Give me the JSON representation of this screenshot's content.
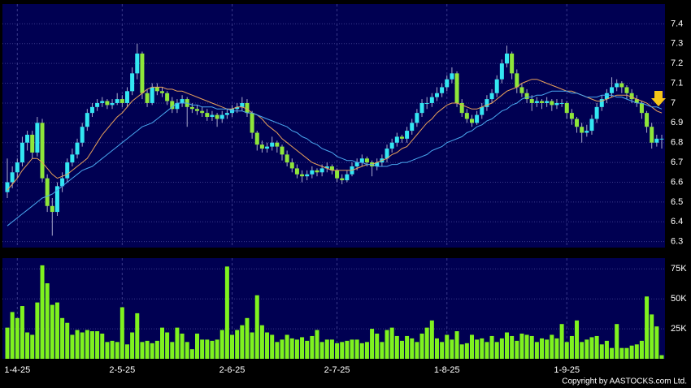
{
  "chart_data": {
    "type": "candlestick",
    "categories": [
      null,
      null,
      "1-4-25",
      null,
      null,
      null,
      null,
      null,
      null,
      null,
      null,
      null,
      null,
      null,
      null,
      null,
      null,
      null,
      null,
      null,
      null,
      null,
      null,
      "2-5-25",
      null,
      null,
      null,
      null,
      null,
      null,
      null,
      null,
      null,
      null,
      null,
      null,
      null,
      null,
      null,
      null,
      null,
      null,
      null,
      null,
      null,
      "2-6-25",
      null,
      null,
      null,
      null,
      null,
      null,
      null,
      null,
      null,
      null,
      null,
      null,
      null,
      null,
      null,
      null,
      null,
      null,
      null,
      null,
      "2-7-25",
      null,
      null,
      null,
      null,
      null,
      null,
      null,
      null,
      null,
      null,
      null,
      null,
      null,
      null,
      null,
      null,
      null,
      null,
      null,
      null,
      null,
      "1-8-25",
      null,
      null,
      null,
      null,
      null,
      null,
      null,
      null,
      null,
      null,
      null,
      null,
      null,
      null,
      null,
      null,
      null,
      null,
      null,
      null,
      null,
      null,
      null,
      "1-9-25",
      null,
      null,
      null,
      null,
      null,
      null,
      null,
      null,
      null,
      null,
      null,
      null,
      null,
      null,
      null,
      null,
      null,
      null,
      null
    ],
    "ohlc": [
      [
        6.55,
        6.72,
        6.52,
        6.6
      ],
      [
        6.6,
        6.68,
        6.57,
        6.65
      ],
      [
        6.65,
        6.72,
        6.62,
        6.7
      ],
      [
        6.7,
        6.83,
        6.68,
        6.8
      ],
      [
        6.8,
        6.86,
        6.76,
        6.84
      ],
      [
        6.84,
        6.86,
        6.72,
        6.75
      ],
      [
        6.75,
        6.93,
        6.73,
        6.9
      ],
      [
        6.9,
        6.92,
        6.6,
        6.62
      ],
      [
        6.62,
        6.64,
        6.45,
        6.48
      ],
      [
        6.48,
        6.52,
        6.33,
        6.45
      ],
      [
        6.45,
        6.6,
        6.43,
        6.58
      ],
      [
        6.58,
        6.65,
        6.55,
        6.62
      ],
      [
        6.62,
        6.72,
        6.6,
        6.7
      ],
      [
        6.7,
        6.77,
        6.68,
        6.74
      ],
      [
        6.74,
        6.82,
        6.72,
        6.8
      ],
      [
        6.8,
        6.9,
        6.78,
        6.88
      ],
      [
        6.88,
        6.97,
        6.86,
        6.95
      ],
      [
        6.95,
        7.0,
        6.93,
        6.98
      ],
      [
        6.98,
        7.02,
        6.96,
        7.0
      ],
      [
        7.0,
        7.03,
        6.98,
        7.01
      ],
      [
        7.01,
        7.02,
        6.97,
        6.99
      ],
      [
        6.99,
        7.02,
        6.97,
        7.0
      ],
      [
        7.0,
        7.05,
        6.99,
        7.02
      ],
      [
        7.02,
        7.04,
        6.98,
        7.0
      ],
      [
        7.0,
        7.08,
        6.98,
        7.06
      ],
      [
        7.06,
        7.18,
        7.04,
        7.15
      ],
      [
        7.15,
        7.3,
        7.12,
        7.25
      ],
      [
        7.25,
        7.26,
        7.02,
        7.05
      ],
      [
        7.05,
        7.07,
        6.98,
        7.0
      ],
      [
        7.0,
        7.1,
        6.99,
        7.08
      ],
      [
        7.08,
        7.1,
        7.04,
        7.06
      ],
      [
        7.06,
        7.08,
        7.03,
        7.05
      ],
      [
        7.05,
        7.06,
        6.99,
        7.01
      ],
      [
        7.01,
        7.03,
        6.95,
        6.97
      ],
      [
        6.97,
        7.02,
        6.95,
        7.0
      ],
      [
        7.0,
        7.04,
        6.98,
        7.02
      ],
      [
        7.02,
        7.03,
        6.88,
        6.98
      ],
      [
        6.98,
        7.0,
        6.95,
        6.97
      ],
      [
        6.97,
        6.99,
        6.94,
        6.96
      ],
      [
        6.96,
        6.98,
        6.93,
        6.95
      ],
      [
        6.95,
        6.97,
        6.91,
        6.93
      ],
      [
        6.93,
        6.96,
        6.91,
        6.94
      ],
      [
        6.94,
        6.95,
        6.88,
        6.92
      ],
      [
        6.92,
        6.96,
        6.9,
        6.94
      ],
      [
        6.94,
        6.97,
        6.92,
        6.95
      ],
      [
        6.95,
        6.99,
        6.93,
        6.97
      ],
      [
        6.97,
        7.0,
        6.95,
        6.98
      ],
      [
        6.98,
        7.03,
        6.96,
        7.0
      ],
      [
        7.0,
        7.02,
        6.93,
        6.95
      ],
      [
        6.95,
        6.96,
        6.82,
        6.85
      ],
      [
        6.85,
        6.86,
        6.76,
        6.79
      ],
      [
        6.79,
        6.81,
        6.75,
        6.77
      ],
      [
        6.77,
        6.8,
        6.75,
        6.78
      ],
      [
        6.78,
        6.83,
        6.76,
        6.8
      ],
      [
        6.8,
        6.81,
        6.75,
        6.78
      ],
      [
        6.78,
        6.79,
        6.71,
        6.74
      ],
      [
        6.74,
        6.76,
        6.68,
        6.7
      ],
      [
        6.7,
        6.72,
        6.65,
        6.67
      ],
      [
        6.67,
        6.69,
        6.62,
        6.64
      ],
      [
        6.64,
        6.66,
        6.6,
        6.63
      ],
      [
        6.63,
        6.66,
        6.61,
        6.64
      ],
      [
        6.64,
        6.68,
        6.62,
        6.66
      ],
      [
        6.66,
        6.67,
        6.63,
        6.65
      ],
      [
        6.65,
        6.69,
        6.63,
        6.67
      ],
      [
        6.67,
        6.7,
        6.65,
        6.68
      ],
      [
        6.68,
        6.69,
        6.64,
        6.66
      ],
      [
        6.66,
        6.67,
        6.6,
        6.62
      ],
      [
        6.62,
        6.64,
        6.59,
        6.61
      ],
      [
        6.61,
        6.66,
        6.6,
        6.64
      ],
      [
        6.64,
        6.7,
        6.63,
        6.68
      ],
      [
        6.68,
        6.72,
        6.66,
        6.7
      ],
      [
        6.7,
        6.74,
        6.68,
        6.72
      ],
      [
        6.72,
        6.73,
        6.68,
        6.7
      ],
      [
        6.7,
        6.71,
        6.63,
        6.68
      ],
      [
        6.68,
        6.72,
        6.66,
        6.7
      ],
      [
        6.7,
        6.74,
        6.68,
        6.72
      ],
      [
        6.72,
        6.79,
        6.7,
        6.77
      ],
      [
        6.77,
        6.82,
        6.75,
        6.8
      ],
      [
        6.8,
        6.85,
        6.78,
        6.83
      ],
      [
        6.83,
        6.84,
        6.8,
        6.82
      ],
      [
        6.82,
        6.88,
        6.8,
        6.86
      ],
      [
        6.86,
        6.92,
        6.84,
        6.9
      ],
      [
        6.9,
        6.97,
        6.88,
        6.95
      ],
      [
        6.95,
        7.02,
        6.93,
        7.0
      ],
      [
        7.0,
        7.03,
        6.97,
        7.0
      ],
      [
        7.0,
        7.05,
        6.98,
        7.03
      ],
      [
        7.03,
        7.08,
        7.01,
        7.05
      ],
      [
        7.05,
        7.1,
        7.03,
        7.08
      ],
      [
        7.08,
        7.14,
        7.06,
        7.12
      ],
      [
        7.12,
        7.18,
        7.1,
        7.15
      ],
      [
        7.15,
        7.16,
        6.98,
        7.0
      ],
      [
        7.0,
        7.02,
        6.93,
        6.95
      ],
      [
        6.95,
        6.97,
        6.9,
        6.92
      ],
      [
        6.92,
        6.94,
        6.88,
        6.9
      ],
      [
        6.9,
        6.96,
        6.89,
        6.94
      ],
      [
        6.94,
        7.0,
        6.92,
        6.98
      ],
      [
        6.98,
        7.04,
        6.96,
        7.02
      ],
      [
        7.02,
        7.07,
        7.0,
        7.05
      ],
      [
        7.05,
        7.14,
        7.03,
        7.12
      ],
      [
        7.12,
        7.22,
        7.1,
        7.2
      ],
      [
        7.2,
        7.29,
        7.18,
        7.25
      ],
      [
        7.25,
        7.26,
        7.12,
        7.15
      ],
      [
        7.15,
        7.17,
        7.05,
        7.08
      ],
      [
        7.08,
        7.1,
        7.03,
        7.05
      ],
      [
        7.05,
        7.07,
        7.0,
        7.02
      ],
      [
        7.02,
        7.04,
        6.96,
        7.0
      ],
      [
        7.0,
        7.03,
        6.98,
        7.01
      ],
      [
        7.01,
        7.02,
        6.97,
        7.0
      ],
      [
        7.0,
        7.03,
        6.98,
        7.01
      ],
      [
        7.01,
        7.02,
        6.96,
        6.99
      ],
      [
        6.99,
        7.02,
        6.97,
        7.0
      ],
      [
        7.0,
        7.02,
        6.98,
        7.0
      ],
      [
        7.0,
        7.01,
        6.92,
        6.95
      ],
      [
        6.95,
        6.97,
        6.89,
        6.92
      ],
      [
        6.92,
        6.93,
        6.85,
        6.88
      ],
      [
        6.88,
        6.9,
        6.8,
        6.85
      ],
      [
        6.85,
        6.89,
        6.83,
        6.86
      ],
      [
        6.86,
        6.94,
        6.84,
        6.92
      ],
      [
        6.92,
        7.0,
        6.9,
        6.98
      ],
      [
        6.98,
        7.04,
        6.96,
        7.02
      ],
      [
        7.02,
        7.07,
        7.0,
        7.05
      ],
      [
        7.05,
        7.13,
        7.03,
        7.08
      ],
      [
        7.08,
        7.12,
        7.06,
        7.1
      ],
      [
        7.1,
        7.11,
        7.05,
        7.08
      ],
      [
        7.08,
        7.09,
        7.02,
        7.05
      ],
      [
        7.05,
        7.07,
        7.0,
        7.02
      ],
      [
        7.02,
        7.04,
        6.98,
        7.0
      ],
      [
        7.0,
        7.01,
        6.92,
        6.95
      ],
      [
        6.95,
        6.96,
        6.85,
        6.88
      ],
      [
        6.88,
        6.9,
        6.77,
        6.8
      ],
      [
        6.8,
        6.84,
        6.78,
        6.82
      ],
      [
        6.82,
        6.84,
        6.77,
        6.82
      ]
    ],
    "up_color": "#33e6f2",
    "down_color": "#8ee63a",
    "ylim": [
      6.27,
      7.5
    ],
    "yticks": [
      6.3,
      6.4,
      6.5,
      6.6,
      6.7,
      6.8,
      6.9,
      7,
      7.1,
      7.2,
      7.3,
      7.4
    ],
    "grid": true,
    "moving_averages": [
      {
        "color": "#e8a05a",
        "values": [
          6.56,
          6.59,
          6.62,
          6.66,
          6.69,
          6.72,
          6.72,
          6.7,
          6.67,
          6.64,
          6.62,
          6.63,
          6.64,
          6.66,
          6.68,
          6.7,
          6.72,
          6.76,
          6.8,
          6.84,
          6.87,
          6.9,
          6.93,
          6.95,
          6.98,
          7.01,
          7.03,
          7.05,
          7.07,
          7.08,
          7.08,
          7.08,
          7.07,
          7.07,
          7.06,
          7.06,
          7.05,
          7.04,
          7.03,
          7.02,
          7.01,
          7.0,
          6.99,
          6.98,
          6.97,
          6.97,
          6.98,
          6.98,
          6.97,
          6.95,
          6.94,
          6.92,
          6.89,
          6.87,
          6.85,
          6.82,
          6.8,
          6.78,
          6.76,
          6.74,
          6.72,
          6.7,
          6.69,
          6.68,
          6.67,
          6.66,
          6.66,
          6.66,
          6.66,
          6.66,
          6.67,
          6.68,
          6.69,
          6.69,
          6.7,
          6.71,
          6.72,
          6.74,
          6.75,
          6.77,
          6.78,
          6.81,
          6.84,
          6.87,
          6.9,
          6.92,
          6.95,
          6.97,
          6.99,
          7.0,
          7.0,
          6.99,
          6.98,
          6.97,
          6.97,
          6.98,
          6.99,
          7.0,
          7.02,
          7.04,
          7.06,
          7.07,
          7.08,
          7.1,
          7.11,
          7.12,
          7.12,
          7.11,
          7.1,
          7.09,
          7.08,
          7.07,
          7.06,
          7.06,
          7.05,
          7.04,
          7.03,
          7.02,
          7.01,
          7.01,
          7.02,
          7.03,
          7.04,
          7.04,
          7.04,
          7.03,
          7.02,
          7.01,
          7.0,
          6.98,
          6.96,
          6.95
        ]
      },
      {
        "color": "#4aa8f0",
        "values": [
          6.38,
          6.4,
          6.42,
          6.44,
          6.46,
          6.48,
          6.5,
          6.52,
          6.53,
          6.54,
          6.56,
          6.58,
          6.6,
          6.62,
          6.64,
          6.66,
          6.67,
          6.68,
          6.7,
          6.72,
          6.74,
          6.76,
          6.78,
          6.8,
          6.82,
          6.84,
          6.86,
          6.88,
          6.89,
          6.9,
          6.92,
          6.94,
          6.96,
          6.98,
          7.0,
          7.0,
          7.0,
          6.99,
          6.99,
          6.98,
          6.98,
          6.98,
          6.97,
          6.97,
          6.97,
          6.96,
          6.96,
          6.96,
          6.95,
          6.95,
          6.94,
          6.93,
          6.92,
          6.91,
          6.9,
          6.89,
          6.88,
          6.86,
          6.85,
          6.83,
          6.82,
          6.8,
          6.79,
          6.77,
          6.76,
          6.75,
          6.73,
          6.72,
          6.71,
          6.71,
          6.7,
          6.7,
          6.69,
          6.69,
          6.68,
          6.68,
          6.68,
          6.69,
          6.69,
          6.7,
          6.7,
          6.71,
          6.72,
          6.73,
          6.74,
          6.76,
          6.77,
          6.78,
          6.8,
          6.81,
          6.82,
          6.83,
          6.85,
          6.86,
          6.88,
          6.89,
          6.91,
          6.92,
          6.94,
          6.96,
          6.97,
          6.99,
          7.0,
          7.02,
          7.03,
          7.03,
          7.04,
          7.04,
          7.05,
          7.06,
          7.06,
          7.06,
          7.06,
          7.05,
          7.05,
          7.04,
          7.03,
          7.03,
          7.03,
          7.04,
          7.04,
          7.04,
          7.03,
          7.03,
          7.02,
          7.01,
          7.0,
          7.0,
          6.99,
          6.98,
          6.98,
          6.97
        ]
      }
    ],
    "volume": {
      "color": "#7ff21e",
      "ylim": [
        0,
        84000
      ],
      "yticks": [
        {
          "value": 25000,
          "label": "25K"
        },
        {
          "value": 50000,
          "label": "50K"
        },
        {
          "value": 75000,
          "label": "75K"
        }
      ],
      "values": [
        26000,
        39000,
        34000,
        44000,
        22000,
        20000,
        47000,
        78000,
        63000,
        45000,
        47000,
        34000,
        30000,
        20000,
        24000,
        22000,
        24000,
        23000,
        23000,
        21000,
        14000,
        15000,
        14000,
        43000,
        12000,
        22000,
        38000,
        14000,
        15000,
        13000,
        15000,
        26000,
        22000,
        14000,
        26000,
        21000,
        14000,
        8000,
        21000,
        16000,
        16000,
        15000,
        16000,
        24000,
        77000,
        20000,
        24000,
        28000,
        34000,
        22000,
        53000,
        28000,
        22000,
        20000,
        14000,
        16000,
        20000,
        17000,
        16000,
        18000,
        15000,
        19000,
        24000,
        14000,
        16000,
        16000,
        13000,
        14000,
        15000,
        16000,
        16000,
        13000,
        14000,
        25000,
        21000,
        14000,
        24000,
        26000,
        19000,
        15000,
        19000,
        17000,
        14000,
        21000,
        26000,
        32000,
        17000,
        14000,
        20000,
        16000,
        23000,
        12000,
        13000,
        20000,
        16000,
        17000,
        14000,
        19000,
        14000,
        17000,
        22000,
        19000,
        15000,
        21000,
        20000,
        19000,
        14000,
        17000,
        16000,
        20000,
        17000,
        29000,
        14000,
        19000,
        32000,
        14000,
        16000,
        18000,
        19000,
        12000,
        15000,
        9000,
        29000,
        9000,
        9000,
        11000,
        12000,
        15000,
        52000,
        37000,
        27000,
        3000
      ]
    },
    "copyright": "Copyright by AASTOCKS.com Ltd."
  }
}
